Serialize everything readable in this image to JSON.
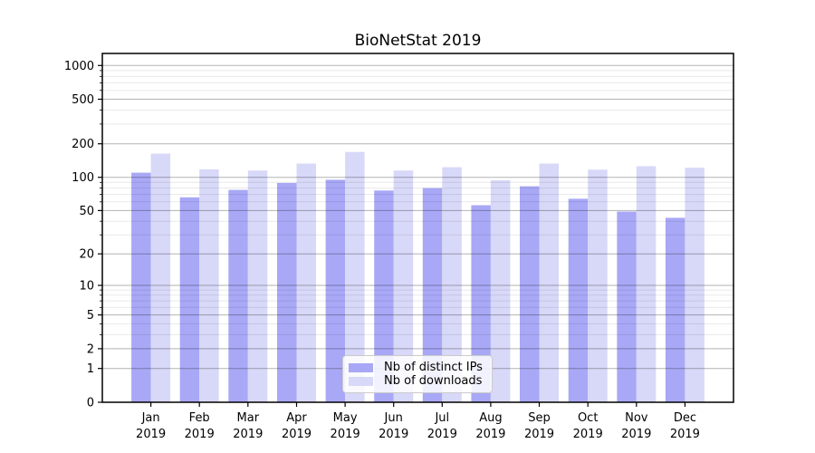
{
  "figure": {
    "background": "#ffffff"
  },
  "chart_data": {
    "type": "bar",
    "title": "BioNetStat 2019",
    "x_tick_year": "2019",
    "categories": [
      "Jan",
      "Feb",
      "Mar",
      "Apr",
      "May",
      "Jun",
      "Jul",
      "Aug",
      "Sep",
      "Oct",
      "Nov",
      "Dec"
    ],
    "series": [
      {
        "name": "Nb of distinct IPs",
        "color": "#a8a8f6",
        "values": [
          110,
          66,
          77,
          89,
          95,
          76,
          80,
          56,
          83,
          64,
          49,
          43
        ]
      },
      {
        "name": "Nb of downloads",
        "color": "#d8d8f8",
        "values": [
          163,
          118,
          115,
          133,
          169,
          115,
          123,
          94,
          133,
          117,
          126,
          122
        ]
      }
    ],
    "yscale": "symlog",
    "ylim": [
      0,
      1280
    ],
    "yticks": [
      0,
      1,
      2,
      5,
      10,
      20,
      50,
      100,
      200,
      500,
      1000
    ],
    "yticks_minor": [
      3,
      4,
      6,
      7,
      8,
      9,
      30,
      40,
      60,
      70,
      80,
      90,
      300,
      400,
      600,
      700,
      800,
      900
    ],
    "grid": true,
    "legend": {
      "location": "lower center"
    },
    "axis_color": "#000000",
    "grid_major_color": "rgba(0,0,0,0.30)",
    "grid_minor_color": "rgba(0,0,0,0.09)"
  }
}
